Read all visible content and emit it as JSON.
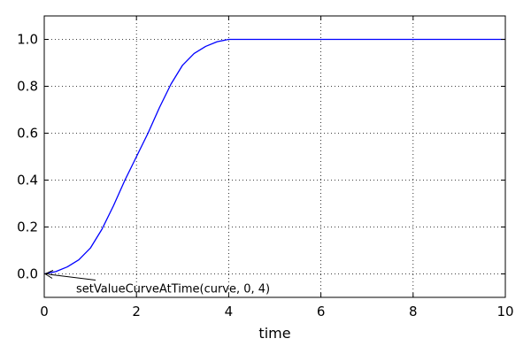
{
  "chart_data": {
    "type": "line",
    "title": "",
    "xlabel": "time",
    "ylabel": "",
    "xlim": [
      0,
      10
    ],
    "ylim": [
      -0.1,
      1.1
    ],
    "xticks": [
      "0",
      "2",
      "4",
      "6",
      "8",
      "10"
    ],
    "yticks": [
      "0.0",
      "0.2",
      "0.4",
      "0.6",
      "0.8",
      "1.0"
    ],
    "grid": true,
    "series": [
      {
        "color": "#0000ff",
        "x": [
          0,
          0.25,
          0.5,
          0.75,
          1.0,
          1.25,
          1.5,
          1.75,
          2.0,
          2.25,
          2.5,
          2.75,
          3.0,
          3.25,
          3.5,
          3.75,
          4.0,
          5.0,
          6.0,
          7.0,
          8.0,
          9.0,
          10.0
        ],
        "y": [
          0.0,
          0.01,
          0.03,
          0.06,
          0.11,
          0.19,
          0.29,
          0.4,
          0.5,
          0.6,
          0.71,
          0.81,
          0.89,
          0.94,
          0.97,
          0.99,
          1.0,
          1.0,
          1.0,
          1.0,
          1.0,
          1.0,
          1.0
        ]
      }
    ],
    "annotations": [
      {
        "text": "setValueCurveAtTime(curve, 0, 4)",
        "point": [
          0,
          0
        ]
      }
    ]
  }
}
